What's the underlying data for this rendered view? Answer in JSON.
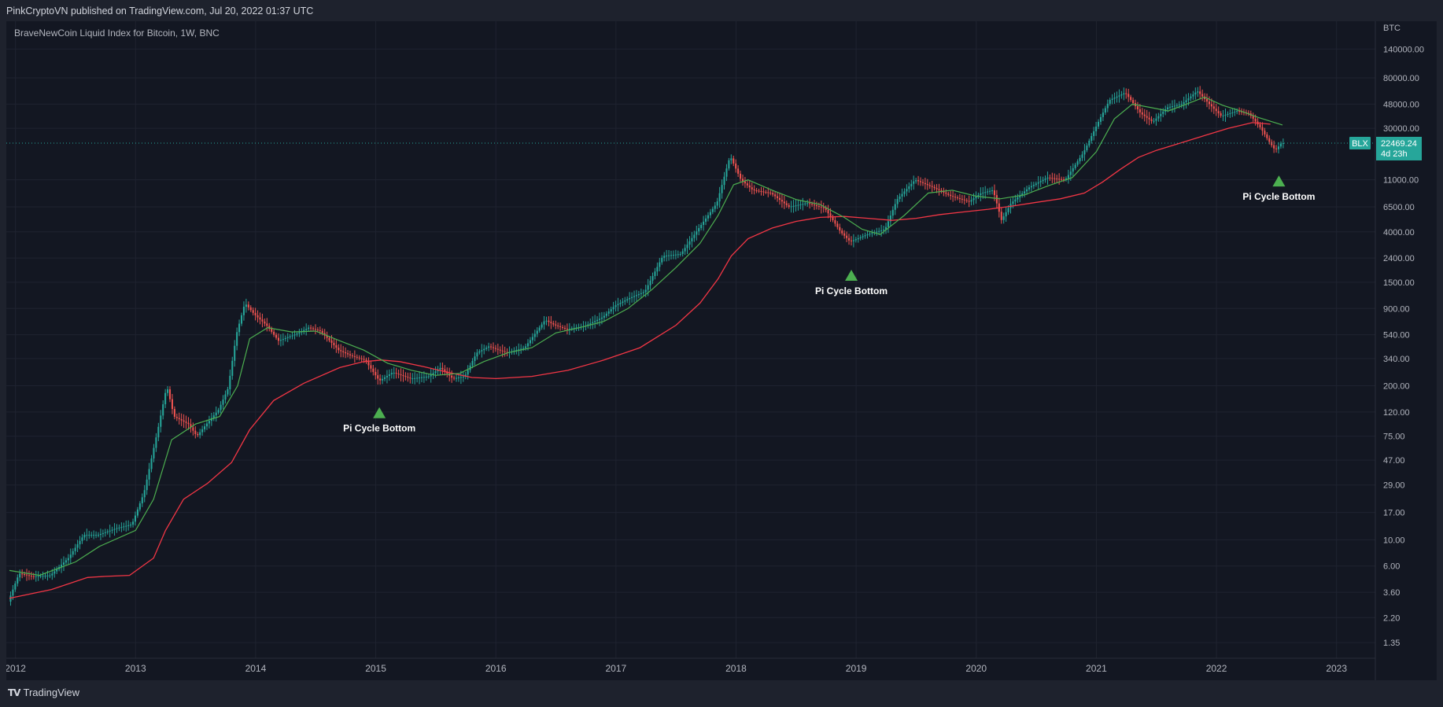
{
  "header": {
    "published": "PinkCryptoVN published on TradingView.com, Jul 20, 2022 01:37 UTC"
  },
  "chart_data": {
    "type": "line",
    "title": "BraveNewCoin Liquid Index for Bitcoin, 1W, BNC",
    "currency": "BTC",
    "symbol": "BLX",
    "last_price": "22469.24",
    "countdown": "4d 23h",
    "y_scale": "log",
    "y_ticks": [
      "140000.00",
      "80000.00",
      "48000.00",
      "30000.00",
      "11000.00",
      "6500.00",
      "4000.00",
      "2400.00",
      "1500.00",
      "900.00",
      "540.00",
      "340.00",
      "200.00",
      "120.00",
      "75.00",
      "47.00",
      "29.00",
      "17.00",
      "10.00",
      "6.00",
      "3.60",
      "2.20",
      "1.35"
    ],
    "x_ticks": [
      "2012",
      "2013",
      "2014",
      "2015",
      "2016",
      "2017",
      "2018",
      "2019",
      "2020",
      "2021",
      "2022",
      "2023"
    ],
    "grid": true,
    "colors": {
      "up": "#26a69a",
      "down": "#ef5350",
      "fast_ma": "#4caf50",
      "slow_ma": "#f23645",
      "marker": "#4caf50",
      "price_line": "#26a69a"
    },
    "price": [
      [
        2011.95,
        3.0
      ],
      [
        2012.04,
        5.2
      ],
      [
        2012.15,
        4.9
      ],
      [
        2012.3,
        5.0
      ],
      [
        2012.45,
        7.0
      ],
      [
        2012.58,
        11.0
      ],
      [
        2012.7,
        11.0
      ],
      [
        2012.85,
        12.5
      ],
      [
        2012.98,
        13.5
      ],
      [
        2013.08,
        25
      ],
      [
        2013.2,
        90
      ],
      [
        2013.27,
        200
      ],
      [
        2013.33,
        110
      ],
      [
        2013.45,
        95
      ],
      [
        2013.52,
        75
      ],
      [
        2013.6,
        95
      ],
      [
        2013.7,
        125
      ],
      [
        2013.78,
        190
      ],
      [
        2013.85,
        550
      ],
      [
        2013.92,
        1000
      ],
      [
        2014.0,
        800
      ],
      [
        2014.1,
        650
      ],
      [
        2014.2,
        480
      ],
      [
        2014.35,
        550
      ],
      [
        2014.45,
        620
      ],
      [
        2014.55,
        580
      ],
      [
        2014.7,
        400
      ],
      [
        2014.8,
        360
      ],
      [
        2014.92,
        330
      ],
      [
        2015.04,
        220
      ],
      [
        2015.15,
        260
      ],
      [
        2015.3,
        230
      ],
      [
        2015.45,
        240
      ],
      [
        2015.55,
        285
      ],
      [
        2015.65,
        230
      ],
      [
        2015.75,
        240
      ],
      [
        2015.85,
        380
      ],
      [
        2015.95,
        430
      ],
      [
        2016.1,
        380
      ],
      [
        2016.25,
        420
      ],
      [
        2016.42,
        720
      ],
      [
        2016.5,
        650
      ],
      [
        2016.6,
        600
      ],
      [
        2016.75,
        640
      ],
      [
        2016.9,
        760
      ],
      [
        2017.0,
        950
      ],
      [
        2017.12,
        1100
      ],
      [
        2017.25,
        1250
      ],
      [
        2017.4,
        2500
      ],
      [
        2017.55,
        2600
      ],
      [
        2017.7,
        4300
      ],
      [
        2017.85,
        7000
      ],
      [
        2017.96,
        17500
      ],
      [
        2018.05,
        11000
      ],
      [
        2018.15,
        9000
      ],
      [
        2018.3,
        8500
      ],
      [
        2018.45,
        6500
      ],
      [
        2018.6,
        7000
      ],
      [
        2018.75,
        6300
      ],
      [
        2018.88,
        4000
      ],
      [
        2018.96,
        3300
      ],
      [
        2019.1,
        3800
      ],
      [
        2019.25,
        4200
      ],
      [
        2019.35,
        7500
      ],
      [
        2019.5,
        11000
      ],
      [
        2019.65,
        9500
      ],
      [
        2019.8,
        8000
      ],
      [
        2019.95,
        7200
      ],
      [
        2020.05,
        8500
      ],
      [
        2020.15,
        9000
      ],
      [
        2020.22,
        5000
      ],
      [
        2020.3,
        7000
      ],
      [
        2020.45,
        9500
      ],
      [
        2020.6,
        11500
      ],
      [
        2020.75,
        11000
      ],
      [
        2020.9,
        18500
      ],
      [
        2021.05,
        38000
      ],
      [
        2021.12,
        52000
      ],
      [
        2021.25,
        60000
      ],
      [
        2021.38,
        40000
      ],
      [
        2021.48,
        34000
      ],
      [
        2021.6,
        45000
      ],
      [
        2021.72,
        48000
      ],
      [
        2021.85,
        62000
      ],
      [
        2021.95,
        48000
      ],
      [
        2022.05,
        38000
      ],
      [
        2022.18,
        42000
      ],
      [
        2022.28,
        40000
      ],
      [
        2022.38,
        30000
      ],
      [
        2022.45,
        23000
      ],
      [
        2022.5,
        19500
      ],
      [
        2022.55,
        22469
      ]
    ],
    "fast_ma": [
      [
        2011.95,
        5.5
      ],
      [
        2012.2,
        5.0
      ],
      [
        2012.5,
        6.5
      ],
      [
        2012.7,
        8.8
      ],
      [
        2013.0,
        12
      ],
      [
        2013.15,
        22
      ],
      [
        2013.3,
        70
      ],
      [
        2013.5,
        95
      ],
      [
        2013.7,
        110
      ],
      [
        2013.85,
        200
      ],
      [
        2013.95,
        500
      ],
      [
        2014.1,
        620
      ],
      [
        2014.3,
        570
      ],
      [
        2014.5,
        580
      ],
      [
        2014.7,
        480
      ],
      [
        2014.9,
        400
      ],
      [
        2015.1,
        310
      ],
      [
        2015.3,
        270
      ],
      [
        2015.5,
        245
      ],
      [
        2015.7,
        255
      ],
      [
        2015.9,
        320
      ],
      [
        2016.1,
        380
      ],
      [
        2016.3,
        420
      ],
      [
        2016.5,
        560
      ],
      [
        2016.7,
        620
      ],
      [
        2016.9,
        700
      ],
      [
        2017.1,
        900
      ],
      [
        2017.3,
        1300
      ],
      [
        2017.5,
        2000
      ],
      [
        2017.7,
        3200
      ],
      [
        2017.85,
        5500
      ],
      [
        2017.98,
        10000
      ],
      [
        2018.1,
        11000
      ],
      [
        2018.3,
        9000
      ],
      [
        2018.5,
        7500
      ],
      [
        2018.7,
        6800
      ],
      [
        2018.9,
        5300
      ],
      [
        2019.05,
        4200
      ],
      [
        2019.2,
        3800
      ],
      [
        2019.4,
        5500
      ],
      [
        2019.6,
        8500
      ],
      [
        2019.8,
        9000
      ],
      [
        2020.0,
        8000
      ],
      [
        2020.2,
        7600
      ],
      [
        2020.4,
        8200
      ],
      [
        2020.6,
        9800
      ],
      [
        2020.8,
        11500
      ],
      [
        2021.0,
        19000
      ],
      [
        2021.15,
        36000
      ],
      [
        2021.3,
        48000
      ],
      [
        2021.45,
        45000
      ],
      [
        2021.6,
        42000
      ],
      [
        2021.75,
        48000
      ],
      [
        2021.9,
        55000
      ],
      [
        2022.05,
        47000
      ],
      [
        2022.2,
        42000
      ],
      [
        2022.35,
        37000
      ],
      [
        2022.55,
        32000
      ]
    ],
    "slow_ma": [
      [
        2011.95,
        3.2
      ],
      [
        2012.3,
        3.8
      ],
      [
        2012.6,
        4.8
      ],
      [
        2012.75,
        4.9
      ],
      [
        2012.95,
        5.0
      ],
      [
        2013.15,
        7.0
      ],
      [
        2013.25,
        12
      ],
      [
        2013.4,
        22
      ],
      [
        2013.6,
        30
      ],
      [
        2013.8,
        45
      ],
      [
        2013.95,
        85
      ],
      [
        2014.15,
        150
      ],
      [
        2014.4,
        210
      ],
      [
        2014.7,
        285
      ],
      [
        2014.9,
        320
      ],
      [
        2015.05,
        330
      ],
      [
        2015.2,
        320
      ],
      [
        2015.4,
        290
      ],
      [
        2015.6,
        260
      ],
      [
        2015.8,
        235
      ],
      [
        2016.0,
        230
      ],
      [
        2016.3,
        240
      ],
      [
        2016.6,
        270
      ],
      [
        2016.9,
        330
      ],
      [
        2017.2,
        420
      ],
      [
        2017.5,
        650
      ],
      [
        2017.7,
        1000
      ],
      [
        2017.85,
        1600
      ],
      [
        2017.96,
        2500
      ],
      [
        2018.1,
        3500
      ],
      [
        2018.3,
        4300
      ],
      [
        2018.5,
        4900
      ],
      [
        2018.7,
        5300
      ],
      [
        2018.9,
        5400
      ],
      [
        2019.1,
        5200
      ],
      [
        2019.3,
        5000
      ],
      [
        2019.5,
        5200
      ],
      [
        2019.7,
        5600
      ],
      [
        2019.9,
        5900
      ],
      [
        2020.1,
        6200
      ],
      [
        2020.3,
        6600
      ],
      [
        2020.5,
        7100
      ],
      [
        2020.7,
        7600
      ],
      [
        2020.9,
        8500
      ],
      [
        2021.05,
        10500
      ],
      [
        2021.2,
        13500
      ],
      [
        2021.35,
        17000
      ],
      [
        2021.5,
        19500
      ],
      [
        2021.7,
        22500
      ],
      [
        2021.9,
        26000
      ],
      [
        2022.1,
        30000
      ],
      [
        2022.3,
        33500
      ],
      [
        2022.45,
        32500
      ]
    ],
    "markers": [
      {
        "x": 2015.03,
        "label": "Pi Cycle Bottom"
      },
      {
        "x": 2018.96,
        "label": "Pi Cycle Bottom"
      },
      {
        "x": 2022.52,
        "label": "Pi Cycle Bottom"
      }
    ]
  },
  "footer": {
    "brand": "TradingView",
    "brand_icon": "TV"
  }
}
